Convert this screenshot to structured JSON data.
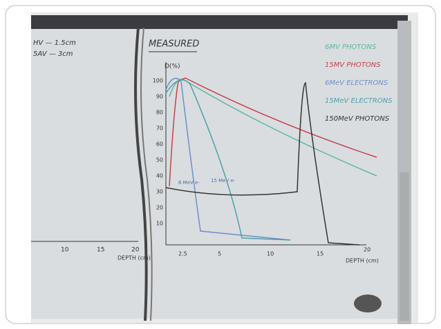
{
  "board": {
    "heading": "MEASURED",
    "left_notes": [
      "HV — 1.5cm",
      "5AV — 3cm"
    ],
    "y_axis_label": "D(%)",
    "y_ticks": [
      "100",
      "90",
      "80",
      "70",
      "60",
      "50",
      "40",
      "30",
      "20",
      "10"
    ],
    "x_ticks": [
      "2.5",
      "5",
      "10",
      "15",
      "20"
    ],
    "x_axis_label": "DEPTH (cm)",
    "left_x_ticks": [
      "10",
      "15",
      "20"
    ],
    "left_x_axis_label": "DEPTH (cm)",
    "curve_labels": [
      "6 MeV e-",
      "15 MeV e-"
    ],
    "legend": [
      {
        "text": "6MV PHOTONS",
        "color": "#5fb89a"
      },
      {
        "text": "15MV PHOTONS",
        "color": "#c8404a"
      },
      {
        "text": "6MeV ELECTRONS",
        "color": "#6f8fc8"
      },
      {
        "text": "15MeV ELECTRONS",
        "color": "#4fa0a8"
      },
      {
        "text": "150MeV PHOTONS",
        "color": "#333333"
      }
    ]
  }
}
